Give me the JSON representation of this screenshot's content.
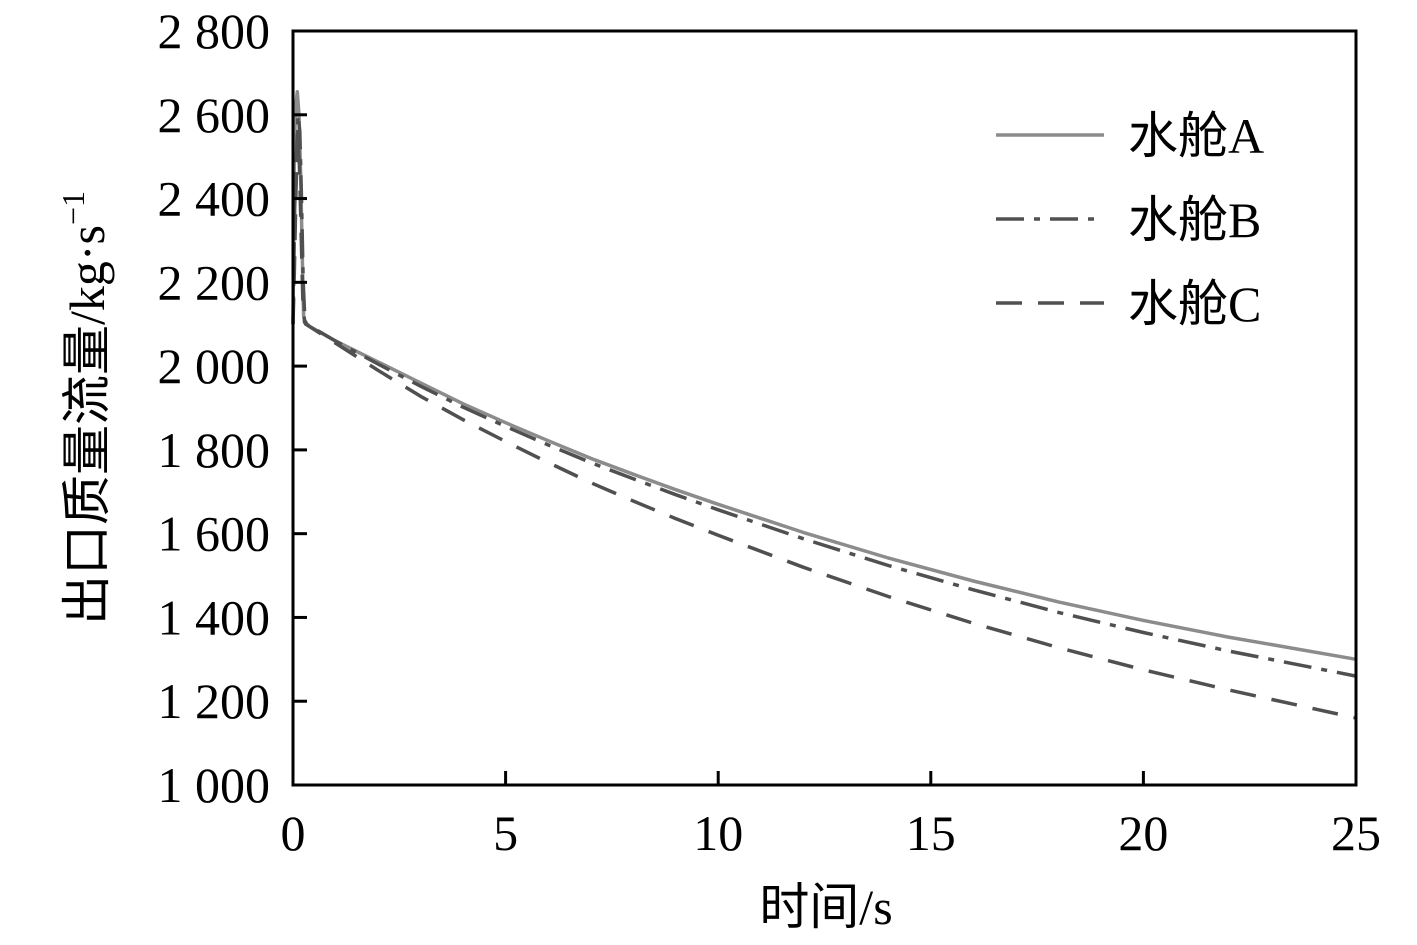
{
  "chart_data": {
    "type": "line",
    "xlabel": "时间/s",
    "ylabel": "出口质量流量/kg·s",
    "ylabel_sup": "−1",
    "xlim": [
      0,
      25
    ],
    "ylim": [
      1000,
      2800
    ],
    "x_ticks": [
      0,
      5,
      10,
      15,
      20,
      25
    ],
    "x_tick_labels": [
      "0",
      "5",
      "10",
      "15",
      "20",
      "25"
    ],
    "y_ticks": [
      1000,
      1200,
      1400,
      1600,
      1800,
      2000,
      2200,
      2400,
      2600,
      2800
    ],
    "y_tick_labels": [
      "1 000",
      "1 200",
      "1 400",
      "1 600",
      "1 800",
      "2 000",
      "2 200",
      "2 400",
      "2 600",
      "2 800"
    ],
    "grid": false,
    "legend_position": "top-right",
    "series": [
      {
        "name": "水舱A",
        "color": "#8c8c8c",
        "dash": "solid",
        "x": [
          0.0,
          0.03,
          0.06,
          0.1,
          0.14,
          0.18,
          0.22,
          0.25,
          0.3,
          1,
          2,
          3,
          4,
          5,
          6,
          7,
          8,
          9,
          10,
          12,
          14,
          16,
          18,
          20,
          22,
          25
        ],
        "y": [
          2100,
          2500,
          2620,
          2655,
          2600,
          2450,
          2250,
          2120,
          2100,
          2060,
          2010,
          1960,
          1910,
          1865,
          1822,
          1780,
          1742,
          1705,
          1670,
          1603,
          1542,
          1487,
          1437,
          1393,
          1353,
          1300
        ]
      },
      {
        "name": "水舱B",
        "color": "#505050",
        "dash": "28,10,6,10",
        "x": [
          0.0,
          0.04,
          0.08,
          0.12,
          0.16,
          0.2,
          0.24,
          0.28,
          0.32,
          1,
          2,
          3,
          4,
          5,
          6,
          7,
          8,
          9,
          10,
          12,
          14,
          16,
          18,
          20,
          22,
          25
        ],
        "y": [
          2100,
          2380,
          2500,
          2600,
          2560,
          2400,
          2200,
          2110,
          2100,
          2060,
          2005,
          1952,
          1902,
          1856,
          1812,
          1770,
          1731,
          1693,
          1657,
          1588,
          1524,
          1466,
          1412,
          1364,
          1320,
          1260
        ]
      },
      {
        "name": "水舱C",
        "color": "#505050",
        "dash": "26,16",
        "x": [
          0.0,
          0.03,
          0.07,
          0.11,
          0.15,
          0.19,
          0.23,
          0.27,
          0.3,
          1,
          2,
          3,
          4,
          5,
          6,
          7,
          8,
          9,
          10,
          12,
          14,
          16,
          18,
          20,
          22,
          25
        ],
        "y": [
          2100,
          2220,
          2420,
          2560,
          2480,
          2320,
          2160,
          2105,
          2100,
          2055,
          1990,
          1928,
          1872,
          1820,
          1770,
          1722,
          1678,
          1636,
          1596,
          1520,
          1450,
          1386,
          1328,
          1275,
          1227,
          1160
        ]
      }
    ]
  }
}
